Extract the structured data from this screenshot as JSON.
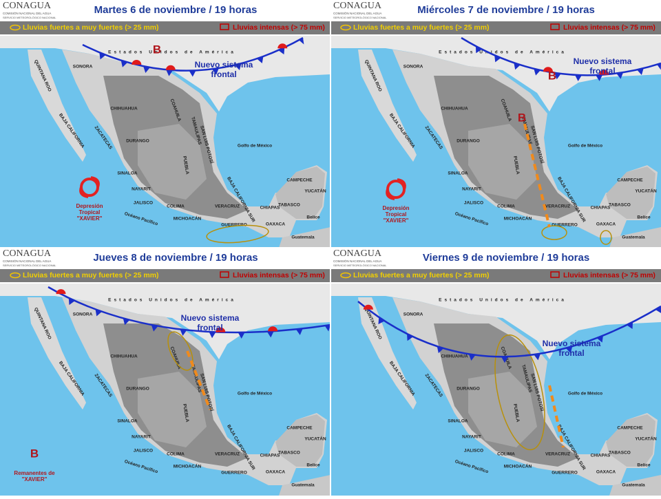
{
  "map": {
    "labels": [
      "Estados Unidos de América",
      "Golfo de México",
      "Océano Pacífico",
      "Belice",
      "Guatemala",
      "SONORA",
      "CHIHUAHUA",
      "COAHUILA",
      "DURANGO",
      "ZACATECAS",
      "SINALOA",
      "NAYARIT",
      "JALISCO",
      "COLIMA",
      "MICHOACÁN",
      "GUERRERO",
      "OAXACA",
      "CHIAPAS",
      "TABASCO",
      "CAMPECHE",
      "YUCATÁN",
      "QUINTANA ROO",
      "BAJA CALIFORNIA",
      "BAJA CALIFORNIA SUR",
      "VERACRUZ",
      "PUEBLA",
      "SAN LUIS POTOSÍ",
      "TAMAULIPAS",
      "NUEVO LEÓN"
    ]
  },
  "logo": {
    "name": "CONAGUA",
    "line1": "COMISIÓN NACIONAL DEL AGUA",
    "line2": "SERVICIO METEOROLÓGICO NACIONAL"
  },
  "legend": {
    "moderate": "Lluvias fuertes a muy fuertes  (> 25 mm)",
    "intense": "Lluvias intensas (> 75 mm)"
  },
  "panels": [
    {
      "title": "Martes 6 de noviembre / 19 horas",
      "front_label": [
        "Nuevo sistema",
        "frontal"
      ],
      "lows": [
        "B"
      ],
      "storm_label": [
        "Depresión",
        "Tropical",
        "\"XAVIER\""
      ]
    },
    {
      "title": "Miércoles 7 de noviembre / 19 horas",
      "front_label": [
        "Nuevo sistema",
        "frontal"
      ],
      "lows": [
        "B",
        "B"
      ],
      "storm_label": [
        "Depresión",
        "Tropical",
        "\"XAVIER\""
      ]
    },
    {
      "title": "Jueves 8 de noviembre / 19 horas",
      "front_label": [
        "Nuevo sistema",
        "frontal"
      ],
      "lows": [
        "B"
      ],
      "storm_label": [
        "Remanentes de",
        "\"XAVIER\""
      ]
    },
    {
      "title": "Viernes 9 de noviembre / 19 horas",
      "front_label": [
        "Nuevo sistema",
        "frontal"
      ],
      "lows": [],
      "storm_label": []
    }
  ]
}
